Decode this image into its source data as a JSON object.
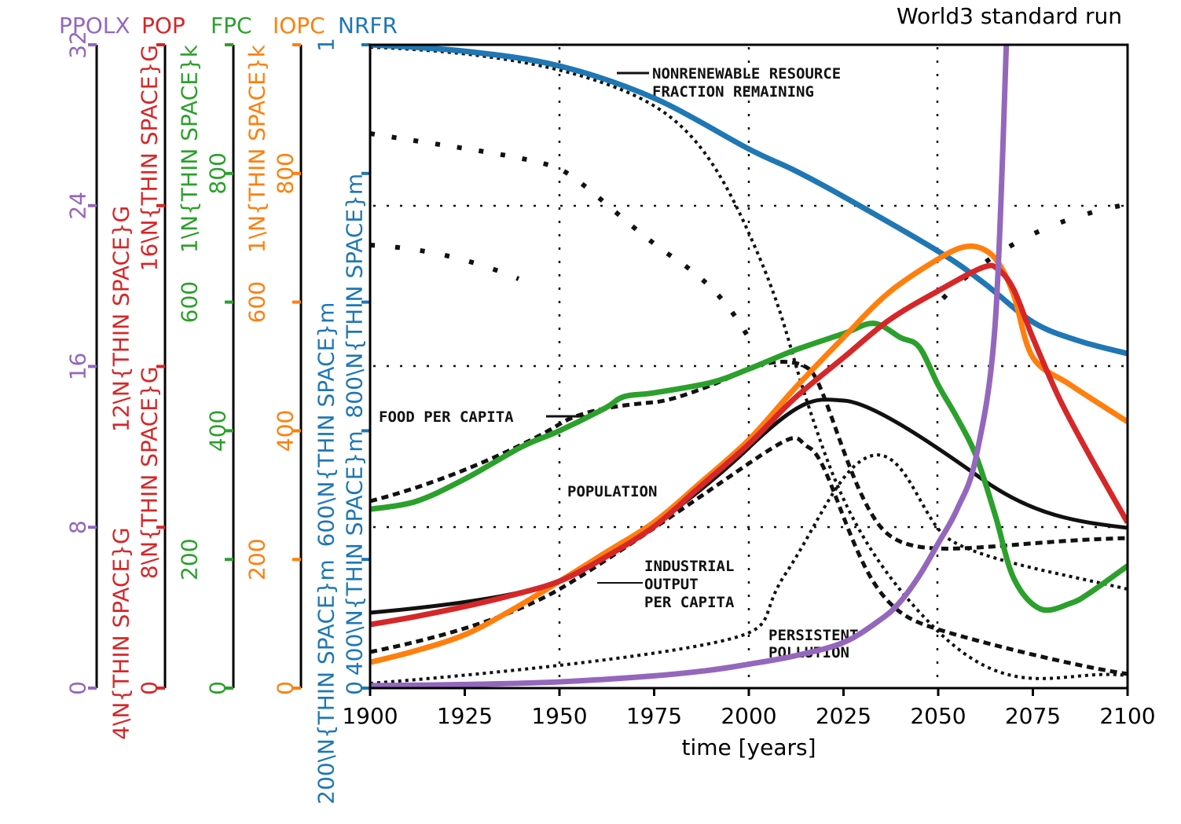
{
  "chart_data": {
    "type": "line",
    "title": "World3 standard run",
    "xlabel": "time [years]",
    "xlim": [
      1900,
      2100
    ],
    "xticks": [
      1900,
      1925,
      1950,
      1975,
      2000,
      2025,
      2050,
      2075,
      2100
    ],
    "axes": [
      {
        "name": "PPOLX",
        "color": "#9467bd",
        "ylim": [
          0,
          32
        ],
        "tick_labels": [
          "0",
          "8",
          "16",
          "24",
          "32"
        ]
      },
      {
        "name": "POP",
        "color": "#d62728",
        "ylim": [
          0,
          16000000000
        ],
        "tick_labels": [
          "0",
          "4\\N{THIN SPACE}G",
          "8\\N{THIN SPACE}G",
          "12\\N{THIN SPACE}G",
          "16\\N{THIN SPACE}G"
        ]
      },
      {
        "name": "FPC",
        "color": "#2ca02c",
        "ylim": [
          0,
          1000
        ],
        "tick_labels": [
          "0",
          "200",
          "400",
          "600",
          "800",
          "1\\N{THIN SPACE}k"
        ]
      },
      {
        "name": "IOPC",
        "color": "#ff7f0e",
        "ylim": [
          0,
          1000
        ],
        "tick_labels": [
          "0",
          "200",
          "400",
          "600",
          "800",
          "1\\N{THIN SPACE}k"
        ]
      },
      {
        "name": "NRFR",
        "color": "#1f77b4",
        "ylim": [
          0,
          1
        ],
        "tick_labels": [
          "0",
          "200\\N{THIN SPACE}m",
          "400\\N{THIN SPACE}m",
          "600\\N{THIN SPACE}m",
          "800\\N{THIN SPACE}m",
          "1"
        ]
      }
    ],
    "series": [
      {
        "name": "NRFR",
        "axis": 4,
        "x": [
          1900,
          1925,
          1950,
          1975,
          2000,
          2012,
          2025,
          2050,
          2062,
          2075,
          2087,
          2100
        ],
        "y": [
          1.0,
          0.99,
          0.967,
          0.917,
          0.838,
          0.805,
          0.764,
          0.679,
          0.63,
          0.569,
          0.54,
          0.52
        ]
      },
      {
        "name": "FPC",
        "axis": 2,
        "x": [
          1900,
          1912,
          1925,
          1940,
          1950,
          1962,
          1967,
          1975,
          1990,
          2000,
          2012,
          2025,
          2033,
          2040,
          2045,
          2050,
          2055,
          2060,
          2065,
          2070,
          2077,
          2085,
          2090,
          2100
        ],
        "y": [
          278,
          290,
          325,
          375,
          400,
          435,
          453,
          459,
          475,
          496,
          525,
          551,
          567,
          545,
          530,
          471,
          420,
          361,
          270,
          170,
          123,
          132,
          148,
          190
        ]
      },
      {
        "name": "IOPC",
        "axis": 3,
        "x": [
          1900,
          1912,
          1925,
          1937,
          1950,
          1962,
          1975,
          1987,
          2000,
          2012,
          2025,
          2037,
          2050,
          2057,
          2062,
          2066,
          2070,
          2075,
          2085,
          2100
        ],
        "y": [
          40,
          58,
          83,
          120,
          166,
          210,
          258,
          318,
          386,
          465,
          545,
          615,
          667,
          686,
          682,
          660,
          610,
          514,
          471,
          414
        ]
      },
      {
        "name": "POP",
        "axis": 1,
        "x": [
          1900,
          1912,
          1925,
          1937,
          1950,
          1962,
          1975,
          1987,
          2000,
          2012,
          2025,
          2037,
          2050,
          2062,
          2066,
          2070,
          2075,
          2082,
          2090,
          2100
        ],
        "y": [
          1580000000.0,
          1780000000.0,
          2030000000.0,
          2300000000.0,
          2660000000.0,
          3250000000.0,
          4020000000.0,
          5000000000.0,
          6070000000.0,
          7200000000.0,
          8220000000.0,
          9150000000.0,
          9880000000.0,
          10470000000.0,
          10400000000.0,
          9900000000.0,
          8710000000.0,
          7200000000.0,
          5780000000.0,
          4120000000.0
        ]
      },
      {
        "name": "PPOLX",
        "axis": 0,
        "x": [
          1900,
          1925,
          1950,
          1975,
          1990,
          2000,
          2012,
          2025,
          2035,
          2040,
          2045,
          2050,
          2055,
          2060,
          2065,
          2068
        ],
        "y": [
          0.12,
          0.18,
          0.31,
          0.61,
          0.9,
          1.19,
          1.6,
          2.27,
          3.44,
          4.3,
          5.59,
          7.2,
          8.9,
          11.5,
          18,
          32
        ]
      }
    ],
    "annotations": [
      "NONRENEWABLE RESOURCE",
      "FRACTION REMAINING",
      "FOOD PER CAPITA",
      "POPULATION",
      "INDUSTRIAL",
      "OUTPUT",
      "PER CAPITA",
      "PERSISTENT",
      "POLLUTION"
    ]
  }
}
